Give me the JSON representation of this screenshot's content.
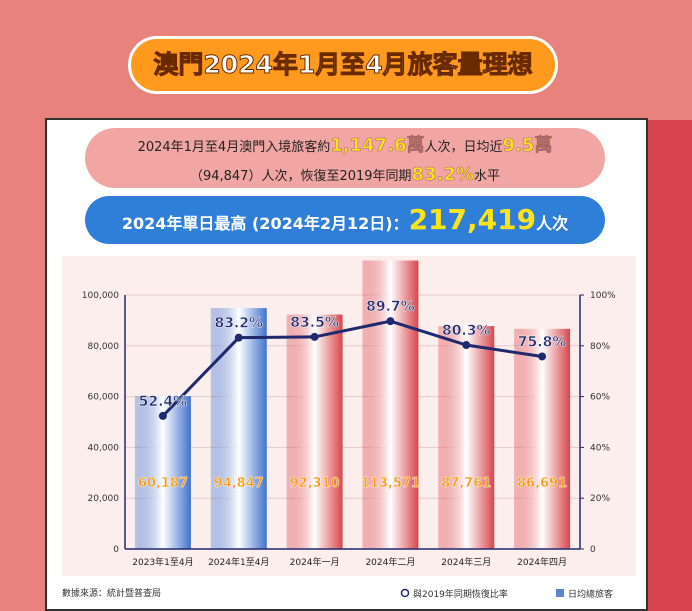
{
  "header": {
    "title": "澳門2024年1月至4月旅客量理想"
  },
  "summary": {
    "line1": [
      "2024年1月至4月澳門入境旅客約",
      "1,147.6萬",
      "人次，日均近",
      "9.5萬"
    ],
    "line2": [
      "（94,847）人次，恢復至2019年同期",
      "83.2%",
      "水平"
    ],
    "peak": [
      "2024年單日最高 (2024年2月12日)：",
      "217,419",
      "人次"
    ]
  },
  "chart_data": {
    "type": "bar",
    "categories": [
      "2023年1至4月",
      "2024年1至4月",
      "2024年一月",
      "2024年二月",
      "2024年三月",
      "2024年四月"
    ],
    "series": [
      {
        "name": "日均總旅客",
        "type": "bar",
        "color": "#5b86cf",
        "colors": [
          "#3f73cc",
          "#3f73cc",
          "#d9454a",
          "#d9454a",
          "#d9454a",
          "#d9454a"
        ],
        "values": [
          60187,
          94847,
          92310,
          113571,
          87761,
          86691
        ],
        "value_labels": [
          "60,187",
          "94,847",
          "92,310",
          "113,571",
          "87,761",
          "86,691"
        ]
      },
      {
        "name": "與2019年同期恢復比率",
        "type": "line",
        "axis": "y2",
        "color": "#1f2a6e",
        "values": [
          52.4,
          83.2,
          83.5,
          89.7,
          80.3,
          75.8
        ],
        "value_labels": [
          "52.4%",
          "83.2%",
          "83.5%",
          "89.7%",
          "80.3%",
          "75.8%"
        ]
      }
    ],
    "ylim": [
      0,
      100000
    ],
    "yticks": [
      0,
      {
        "value": 20000,
        "label": "20,000"
      },
      {
        "value": 40000,
        "label": "40,000"
      },
      {
        "value": 60000,
        "label": "60,000"
      },
      {
        "value": 80000,
        "label": "80,000"
      },
      {
        "value": 100000,
        "label": "100,000"
      }
    ],
    "y2lim": [
      0,
      100
    ],
    "y2ticks": [
      0,
      {
        "value": 20,
        "label": "20%"
      },
      {
        "value": 40,
        "label": "40%"
      },
      {
        "value": 60,
        "label": "60%"
      },
      {
        "value": 80,
        "label": "80%"
      },
      {
        "value": 100,
        "label": "100%"
      }
    ],
    "grid": true,
    "source": "數據來源：統計暨普查局"
  }
}
